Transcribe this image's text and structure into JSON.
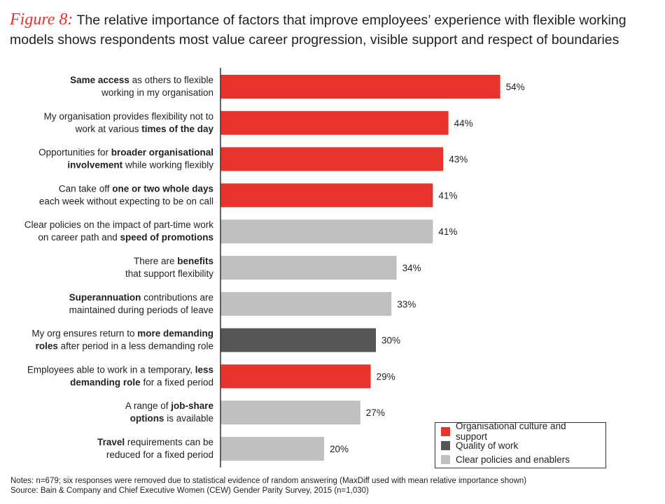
{
  "figure_label": "Figure 8:",
  "title_line1": "The relative importance of factors that improve employees’ experience with flexible working",
  "title_line2": "models shows respondents most value career progression, visible support and respect of boundaries",
  "colors": {
    "Organisational culture and support": "#e8322c",
    "Quality of work": "#555555",
    "Clear policies and enablers": "#c0c0c0"
  },
  "legend": [
    {
      "label": "Organisational culture and support",
      "color": "#e8322c"
    },
    {
      "label": "Quality of work",
      "color": "#555555"
    },
    {
      "label": "Clear policies and enablers",
      "color": "#c0c0c0"
    }
  ],
  "chart_data": {
    "type": "bar",
    "orientation": "horizontal",
    "unit": "%",
    "xlim": [
      0,
      60
    ],
    "categories": [
      [
        [
          {
            "t": "Same access",
            "b": true
          },
          {
            "t": " as others to flexible",
            "b": false
          }
        ],
        [
          {
            "t": "working in my organisation",
            "b": false
          }
        ]
      ],
      [
        [
          {
            "t": "My organisation provides flexibility not to",
            "b": false
          }
        ],
        [
          {
            "t": "work at various ",
            "b": false
          },
          {
            "t": "times of the day",
            "b": true
          }
        ]
      ],
      [
        [
          {
            "t": "Opportunities for ",
            "b": false
          },
          {
            "t": "broader organisational",
            "b": true
          }
        ],
        [
          {
            "t": "involvement",
            "b": true
          },
          {
            "t": " while working flexibly",
            "b": false
          }
        ]
      ],
      [
        [
          {
            "t": "Can take off ",
            "b": false
          },
          {
            "t": "one or two whole days",
            "b": true
          }
        ],
        [
          {
            "t": "each week without expecting to be on call",
            "b": false
          }
        ]
      ],
      [
        [
          {
            "t": "Clear policies on the impact of part-time work",
            "b": false
          }
        ],
        [
          {
            "t": "on career path and ",
            "b": false
          },
          {
            "t": "speed of promotions",
            "b": true
          }
        ]
      ],
      [
        [
          {
            "t": "There are ",
            "b": false
          },
          {
            "t": "benefits",
            "b": true
          }
        ],
        [
          {
            "t": "that support flexibility",
            "b": false
          }
        ]
      ],
      [
        [
          {
            "t": "Superannuation",
            "b": true
          },
          {
            "t": " contributions are",
            "b": false
          }
        ],
        [
          {
            "t": "maintained during periods of leave",
            "b": false
          }
        ]
      ],
      [
        [
          {
            "t": "My org ensures return to ",
            "b": false
          },
          {
            "t": "more demanding",
            "b": true
          }
        ],
        [
          {
            "t": "roles",
            "b": true
          },
          {
            "t": " after period in a less demanding role",
            "b": false
          }
        ]
      ],
      [
        [
          {
            "t": "Employees able to work in a temporary, ",
            "b": false
          },
          {
            "t": "less",
            "b": true
          }
        ],
        [
          {
            "t": "demanding role",
            "b": true
          },
          {
            "t": " for a fixed period",
            "b": false
          }
        ]
      ],
      [
        [
          {
            "t": "A range of ",
            "b": false
          },
          {
            "t": "job-share",
            "b": true
          }
        ],
        [
          {
            "t": "options",
            "b": true
          },
          {
            "t": " is available",
            "b": false
          }
        ]
      ],
      [
        [
          {
            "t": "Travel",
            "b": true
          },
          {
            "t": " requirements can be",
            "b": false
          }
        ],
        [
          {
            "t": "reduced for a fixed period",
            "b": false
          }
        ]
      ]
    ],
    "values": [
      54,
      44,
      43,
      41,
      41,
      34,
      33,
      30,
      29,
      27,
      20
    ],
    "value_labels": [
      "54%",
      "44%",
      "43%",
      "41%",
      "41%",
      "34%",
      "33%",
      "30%",
      "29%",
      "27%",
      "20%"
    ],
    "groups": [
      "Organisational culture and support",
      "Organisational culture and support",
      "Organisational culture and support",
      "Organisational culture and support",
      "Clear policies and enablers",
      "Clear policies and enablers",
      "Clear policies and enablers",
      "Quality of work",
      "Organisational culture and support",
      "Clear policies and enablers",
      "Clear policies and enablers"
    ]
  },
  "notes": [
    "Notes: n=679; six responses were removed due to statistical evidence of random answering (MaxDiff used with mean relative importance shown)",
    "Source: Bain & Company and Chief Executive Women (CEW) Gender Parity Survey, 2015 (n=1,030)"
  ]
}
